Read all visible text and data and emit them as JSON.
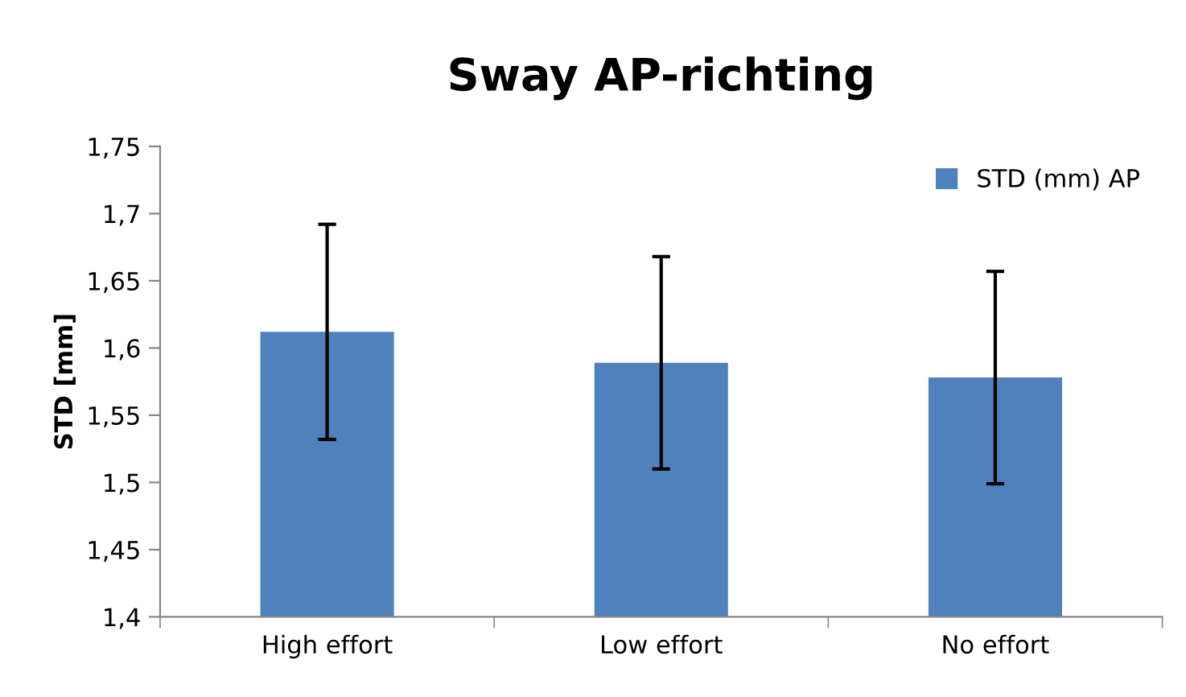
{
  "chart_data": {
    "type": "bar",
    "title": "Sway AP-richting",
    "ylabel": "STD [mm]",
    "categories": [
      "High effort",
      "Low effort",
      "No effort"
    ],
    "series": [
      {
        "name": "STD (mm) AP",
        "color": "#4f81bd",
        "values": [
          1.612,
          1.589,
          1.578
        ],
        "errors": [
          0.08,
          0.079,
          0.079
        ]
      }
    ],
    "ylim": [
      1.4,
      1.75
    ],
    "yticks": [
      {
        "value": 1.4,
        "label": "1,4"
      },
      {
        "value": 1.45,
        "label": "1,45"
      },
      {
        "value": 1.5,
        "label": "1,5"
      },
      {
        "value": 1.55,
        "label": "1,55"
      },
      {
        "value": 1.6,
        "label": "1,6"
      },
      {
        "value": 1.65,
        "label": "1,65"
      },
      {
        "value": 1.7,
        "label": "1,7"
      },
      {
        "value": 1.75,
        "label": "1,75"
      }
    ],
    "grid": false,
    "legend": "top right"
  }
}
